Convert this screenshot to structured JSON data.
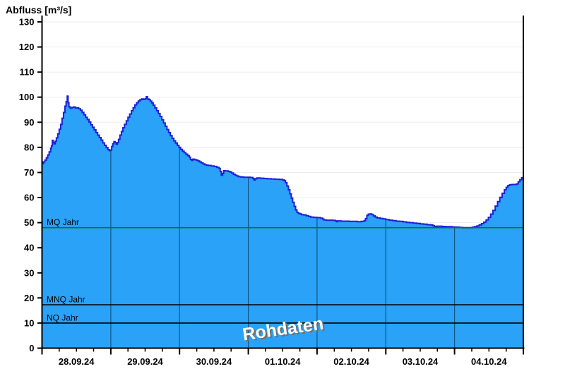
{
  "title": "Abfluss [m³/s]",
  "watermark": "Rohdaten",
  "colors": {
    "area_fill": "#29a2f8",
    "area_stroke": "#1f1fd6",
    "mq_line": "#007d00",
    "ref_line": "#000000",
    "grid": "#ededed",
    "day_line": "rgba(0,0,0,0.48)",
    "axis": "#000000"
  },
  "chart_data": {
    "type": "area",
    "title": "Abfluss [m³/s]",
    "ylabel": "Abfluss [m³/s]",
    "xlabel": "",
    "x_unit": "hours since 28.09.24 00:00",
    "x_range_hours": [
      0,
      168
    ],
    "ylim": [
      0,
      130
    ],
    "y_ticks": [
      0,
      10,
      20,
      30,
      40,
      50,
      60,
      70,
      80,
      90,
      100,
      110,
      120,
      130
    ],
    "x_day_labels": [
      "28.09.24",
      "29.09.24",
      "30.09.24",
      "01.10.24",
      "02.10.24",
      "03.10.24",
      "04.10.24"
    ],
    "minor_tick_hours": 6,
    "grid": "horizontal",
    "legend": "none",
    "watermark": "Rohdaten",
    "reference_lines": [
      {
        "label": "MQ Jahr",
        "value": 48.0,
        "color": "#007d00"
      },
      {
        "label": "MNQ Jahr",
        "value": 17.3,
        "color": "#000000"
      },
      {
        "label": "NQ Jahr",
        "value": 10.0,
        "color": "#000000"
      }
    ],
    "series": [
      {
        "name": "Abfluss Rohdaten",
        "points": [
          [
            0,
            73.5
          ],
          [
            0.5,
            74.2
          ],
          [
            1,
            74.9
          ],
          [
            1.5,
            75.8
          ],
          [
            2,
            77
          ],
          [
            2.5,
            78.2
          ],
          [
            3,
            79.6
          ],
          [
            3.3,
            80.6
          ],
          [
            3.6,
            82.8
          ],
          [
            3.9,
            82
          ],
          [
            4.2,
            81.4
          ],
          [
            4.6,
            82.4
          ],
          [
            5,
            83.8
          ],
          [
            5.5,
            85.4
          ],
          [
            6,
            87.2
          ],
          [
            6.5,
            89.2
          ],
          [
            7,
            91.6
          ],
          [
            7.5,
            93.9
          ],
          [
            8,
            96.4
          ],
          [
            8.4,
            98.2
          ],
          [
            8.8,
            100.4
          ],
          [
            9.1,
            97.8
          ],
          [
            9.4,
            96.2
          ],
          [
            9.8,
            95.6
          ],
          [
            10.4,
            95.9
          ],
          [
            11,
            96.1
          ],
          [
            11.6,
            95.7
          ],
          [
            12.2,
            95.8
          ],
          [
            12.8,
            95.4
          ],
          [
            13.4,
            94.8
          ],
          [
            14,
            93.9
          ],
          [
            14.6,
            93
          ],
          [
            15.2,
            92
          ],
          [
            15.8,
            91.1
          ],
          [
            16.4,
            90.1
          ],
          [
            17,
            89
          ],
          [
            17.6,
            88
          ],
          [
            18.2,
            87
          ],
          [
            18.8,
            85.9
          ],
          [
            19.4,
            84.9
          ],
          [
            20,
            83.9
          ],
          [
            20.6,
            82.9
          ],
          [
            21.2,
            81.8
          ],
          [
            21.8,
            80.8
          ],
          [
            22.4,
            79.9
          ],
          [
            23,
            79.1
          ],
          [
            23.5,
            78.7
          ],
          [
            23.9,
            78.9
          ],
          [
            24.3,
            80.3
          ],
          [
            24.7,
            81.4
          ],
          [
            25.1,
            82.3
          ],
          [
            25.5,
            81.9
          ],
          [
            25.9,
            81.2
          ],
          [
            26.3,
            81.9
          ],
          [
            26.7,
            83.2
          ],
          [
            27.2,
            84.9
          ],
          [
            27.7,
            86.3
          ],
          [
            28.2,
            87.8
          ],
          [
            28.8,
            89.2
          ],
          [
            29.4,
            90.6
          ],
          [
            30,
            92
          ],
          [
            30.6,
            93.3
          ],
          [
            31.2,
            94.6
          ],
          [
            31.8,
            95.8
          ],
          [
            32.4,
            96.9
          ],
          [
            33,
            97.8
          ],
          [
            33.6,
            98.5
          ],
          [
            34.2,
            99
          ],
          [
            34.8,
            99.3
          ],
          [
            35.4,
            99.1
          ],
          [
            36,
            99.4
          ],
          [
            36.4,
            100.2
          ],
          [
            36.8,
            99.3
          ],
          [
            37.3,
            99
          ],
          [
            37.8,
            98.4
          ],
          [
            38.3,
            97.7
          ],
          [
            38.8,
            96.8
          ],
          [
            39.4,
            95.7
          ],
          [
            40,
            94.6
          ],
          [
            40.6,
            93.5
          ],
          [
            41.2,
            92.3
          ],
          [
            41.8,
            91
          ],
          [
            42.4,
            89.7
          ],
          [
            43,
            88.4
          ],
          [
            43.6,
            87.1
          ],
          [
            44.2,
            85.9
          ],
          [
            44.8,
            84.7
          ],
          [
            45.4,
            83.6
          ],
          [
            46,
            82.6
          ],
          [
            46.6,
            81.7
          ],
          [
            47.2,
            80.8
          ],
          [
            47.8,
            80
          ],
          [
            48.4,
            79.2
          ],
          [
            49,
            78.5
          ],
          [
            49.6,
            77.9
          ],
          [
            50.2,
            77.3
          ],
          [
            50.8,
            76.7
          ],
          [
            51.4,
            76.1
          ],
          [
            51.8,
            75.2
          ],
          [
            52.2,
            74.8
          ],
          [
            52.6,
            75.3
          ],
          [
            53.2,
            75.1
          ],
          [
            53.8,
            74.9
          ],
          [
            54.4,
            74.6
          ],
          [
            55,
            74.2
          ],
          [
            55.6,
            73.8
          ],
          [
            56.2,
            73.4
          ],
          [
            56.8,
            73.1
          ],
          [
            57.4,
            72.9
          ],
          [
            58,
            72.8
          ],
          [
            59,
            72.6
          ],
          [
            60,
            72.4
          ],
          [
            61,
            72
          ],
          [
            61.8,
            71.6
          ],
          [
            62.2,
            70.4
          ],
          [
            62.6,
            68.9
          ],
          [
            63,
            69.6
          ],
          [
            63.4,
            70.7
          ],
          [
            64,
            70.6
          ],
          [
            65,
            70.4
          ],
          [
            65.6,
            70.2
          ],
          [
            66.2,
            69.8
          ],
          [
            66.8,
            69.3
          ],
          [
            67.4,
            68.9
          ],
          [
            68,
            68.6
          ],
          [
            68.6,
            68.3
          ],
          [
            69.4,
            68.2
          ],
          [
            70.4,
            68.1
          ],
          [
            71.6,
            68.1
          ],
          [
            72.8,
            68
          ],
          [
            73.6,
            67.6
          ],
          [
            74,
            67
          ],
          [
            74.4,
            67.5
          ],
          [
            75,
            67.8
          ],
          [
            76.2,
            67.7
          ],
          [
            77.4,
            67.6
          ],
          [
            78.6,
            67.5
          ],
          [
            80,
            67.4
          ],
          [
            81.4,
            67.3
          ],
          [
            82.8,
            67.2
          ],
          [
            84,
            67
          ],
          [
            84.6,
            66.7
          ],
          [
            85,
            65.9
          ],
          [
            85.5,
            64.6
          ],
          [
            86,
            63.1
          ],
          [
            86.5,
            61.5
          ],
          [
            87,
            59.8
          ],
          [
            87.5,
            58.1
          ],
          [
            88,
            56.5
          ],
          [
            88.5,
            55.1
          ],
          [
            89,
            54.1
          ],
          [
            89.5,
            53.7
          ],
          [
            90,
            53.5
          ],
          [
            90.6,
            53.2
          ],
          [
            91.4,
            53.1
          ],
          [
            92.2,
            52.8
          ],
          [
            93,
            52.5
          ],
          [
            93.8,
            52.2
          ],
          [
            94.8,
            52.1
          ],
          [
            96,
            52
          ],
          [
            97.2,
            51.8
          ],
          [
            98,
            51.4
          ],
          [
            98.4,
            51.1
          ],
          [
            99.2,
            51
          ],
          [
            100.4,
            51
          ],
          [
            101.6,
            50.9
          ],
          [
            102.4,
            50.7
          ],
          [
            102.8,
            50.4
          ],
          [
            103.2,
            50.7
          ],
          [
            104.4,
            50.6
          ],
          [
            105.8,
            50.6
          ],
          [
            107.2,
            50.5
          ],
          [
            108.6,
            50.5
          ],
          [
            110,
            50.4
          ],
          [
            111.4,
            50.5
          ],
          [
            112.4,
            50.8
          ],
          [
            112.9,
            51.6
          ],
          [
            113.4,
            52.9
          ],
          [
            113.9,
            53.4
          ],
          [
            114.5,
            53.5
          ],
          [
            115.1,
            53.2
          ],
          [
            115.7,
            52.7
          ],
          [
            116.3,
            52.2
          ],
          [
            117,
            51.9
          ],
          [
            118,
            51.7
          ],
          [
            119,
            51.5
          ],
          [
            120,
            51.2
          ],
          [
            121.2,
            51
          ],
          [
            122.4,
            50.8
          ],
          [
            123.6,
            50.6
          ],
          [
            124.8,
            50.5
          ],
          [
            126,
            50.3
          ],
          [
            127.2,
            50.1
          ],
          [
            128.4,
            50
          ],
          [
            129.6,
            49.8
          ],
          [
            130.8,
            49.7
          ],
          [
            132,
            49.5
          ],
          [
            133.2,
            49.4
          ],
          [
            134.4,
            49.2
          ],
          [
            135.6,
            49.1
          ],
          [
            136.4,
            48.8
          ],
          [
            137,
            48.5
          ],
          [
            137.4,
            48.2
          ],
          [
            137.8,
            48.6
          ],
          [
            138.6,
            48.6
          ],
          [
            139.6,
            48.5
          ],
          [
            140.8,
            48.4
          ],
          [
            142,
            48.4
          ],
          [
            143.2,
            48.3
          ],
          [
            144.4,
            48.2
          ],
          [
            145.6,
            48.1
          ],
          [
            146.8,
            48
          ],
          [
            148,
            48
          ],
          [
            149.2,
            48
          ],
          [
            150.2,
            48.2
          ],
          [
            151,
            48.4
          ],
          [
            151.8,
            48.7
          ],
          [
            152.6,
            49.1
          ],
          [
            153.4,
            49.6
          ],
          [
            154.2,
            50.2
          ],
          [
            155,
            51.1
          ],
          [
            155.8,
            52.1
          ],
          [
            156.6,
            53.4
          ],
          [
            157.4,
            54.9
          ],
          [
            158.2,
            56.6
          ],
          [
            159,
            58.4
          ],
          [
            159.8,
            60.1
          ],
          [
            160.6,
            61.7
          ],
          [
            161.4,
            63.1
          ],
          [
            162,
            64.1
          ],
          [
            162.6,
            64.8
          ],
          [
            163.2,
            65.1
          ],
          [
            164,
            65.2
          ],
          [
            164.8,
            65.2
          ],
          [
            165.6,
            65.4
          ],
          [
            166.2,
            66.3
          ],
          [
            166.8,
            67.1
          ],
          [
            167.4,
            67.9
          ],
          [
            168,
            68.7
          ]
        ]
      }
    ]
  }
}
